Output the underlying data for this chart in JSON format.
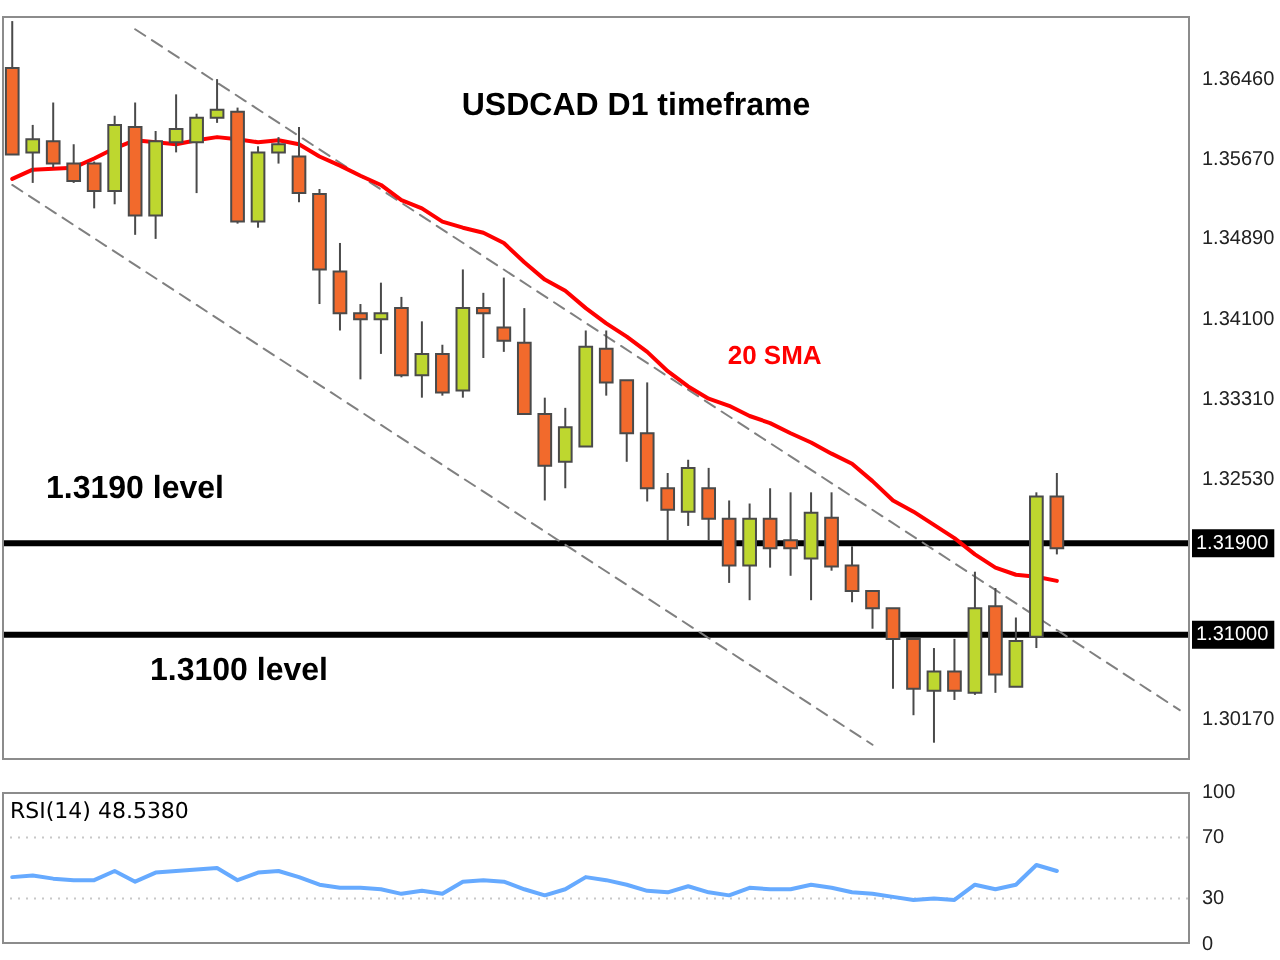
{
  "chart_data": [
    {
      "type": "candlestick",
      "title": "USDCAD D1 timeframe",
      "categories": [
        null,
        null,
        null,
        null,
        null,
        null,
        null,
        null,
        null,
        null,
        null,
        null,
        null,
        null,
        null,
        null,
        null,
        null,
        null,
        null,
        null,
        null,
        null,
        null,
        null,
        null,
        null,
        null,
        null,
        null,
        null,
        null,
        null,
        null,
        null,
        null,
        null,
        null,
        null,
        null,
        null,
        null,
        null,
        null,
        null,
        null,
        null,
        null,
        null,
        null,
        null,
        null,
        null,
        null,
        null,
        null,
        null,
        null
      ],
      "ohlc": [
        [
          1.3657,
          1.3703,
          1.3572,
          1.3572
        ],
        [
          1.3574,
          1.3601,
          1.3544,
          1.3587
        ],
        [
          1.3585,
          1.3623,
          1.3559,
          1.3563
        ],
        [
          1.3563,
          1.3582,
          1.3544,
          1.3546
        ],
        [
          1.3563,
          1.3565,
          1.3519,
          1.3536
        ],
        [
          1.3536,
          1.361,
          1.3523,
          1.3601
        ],
        [
          1.3599,
          1.3623,
          1.3493,
          1.3512
        ],
        [
          1.3512,
          1.3595,
          1.3489,
          1.3585
        ],
        [
          1.3584,
          1.3631,
          1.3574,
          1.3597
        ],
        [
          1.3584,
          1.3612,
          1.3534,
          1.3608
        ],
        [
          1.3608,
          1.3646,
          1.3603,
          1.3616
        ],
        [
          1.3614,
          1.3618,
          1.3504,
          1.3506
        ],
        [
          1.3506,
          1.358,
          1.35,
          1.3574
        ],
        [
          1.3574,
          1.3589,
          1.3563,
          1.3582
        ],
        [
          1.357,
          1.3599,
          1.3525,
          1.3534
        ],
        [
          1.3533,
          1.3538,
          1.3425,
          1.3459
        ],
        [
          1.3457,
          1.3485,
          1.3399,
          1.3416
        ],
        [
          1.3416,
          1.3425,
          1.3351,
          1.341
        ],
        [
          1.341,
          1.3446,
          1.3376,
          1.3416
        ],
        [
          1.3421,
          1.3432,
          1.3353,
          1.3355
        ],
        [
          1.3355,
          1.3408,
          1.3333,
          1.3376
        ],
        [
          1.3376,
          1.3385,
          1.3335,
          1.3338
        ],
        [
          1.334,
          1.3459,
          1.3333,
          1.3421
        ],
        [
          1.3421,
          1.3436,
          1.3372,
          1.3416
        ],
        [
          1.3402,
          1.3451,
          1.3378,
          1.3389
        ],
        [
          1.3387,
          1.3421,
          1.3317,
          1.3317
        ],
        [
          1.3317,
          1.3333,
          1.3232,
          1.3266
        ],
        [
          1.327,
          1.3323,
          1.3244,
          1.3304
        ],
        [
          1.3285,
          1.3399,
          1.3285,
          1.3383
        ],
        [
          1.3381,
          1.3399,
          1.3335,
          1.3348
        ],
        [
          1.335,
          1.335,
          1.327,
          1.3298
        ],
        [
          1.3298,
          1.3348,
          1.3231,
          1.3244
        ],
        [
          1.3244,
          1.3259,
          1.3193,
          1.3223
        ],
        [
          1.3221,
          1.3272,
          1.3207,
          1.3264
        ],
        [
          1.3244,
          1.3264,
          1.3193,
          1.3214
        ],
        [
          1.3214,
          1.3232,
          1.3151,
          1.3168
        ],
        [
          1.3168,
          1.3229,
          1.3134,
          1.3214
        ],
        [
          1.3214,
          1.3244,
          1.3166,
          1.3185
        ],
        [
          1.3193,
          1.324,
          1.3158,
          1.3185
        ],
        [
          1.3175,
          1.324,
          1.3134,
          1.322
        ],
        [
          1.3215,
          1.324,
          1.3163,
          1.3167
        ],
        [
          1.3168,
          1.3187,
          1.3132,
          1.3143
        ],
        [
          1.3143,
          1.3144,
          1.3106,
          1.3126
        ],
        [
          1.3126,
          1.3126,
          1.3047,
          1.3096
        ],
        [
          1.3096,
          1.3096,
          1.3021,
          1.3047
        ],
        [
          1.3045,
          1.3087,
          1.2994,
          1.3064
        ],
        [
          1.3064,
          1.3096,
          1.3036,
          1.3045
        ],
        [
          1.3043,
          1.3162,
          1.3041,
          1.3126
        ],
        [
          1.3128,
          1.3146,
          1.3043,
          1.3061
        ],
        [
          1.3049,
          1.3117,
          1.3049,
          1.3094
        ],
        [
          1.3098,
          1.324,
          1.3087,
          1.3236
        ],
        [
          1.3236,
          1.3259,
          1.3179,
          1.3185
        ],
        null,
        null,
        null,
        null,
        null,
        null
      ],
      "colors": [
        "#f26a2c",
        "#bed72f",
        "#f26a2c",
        "#f26a2c",
        "#f26a2c",
        "#bed72f",
        "#f26a2c",
        "#bed72f",
        "#bed72f",
        "#bed72f",
        "#bed72f",
        "#f26a2c",
        "#bed72f",
        "#bed72f",
        "#f26a2c",
        "#f26a2c",
        "#f26a2c",
        "#f26a2c",
        "#bed72f",
        "#f26a2c",
        "#bed72f",
        "#f26a2c",
        "#bed72f",
        "#f26a2c",
        "#f26a2c",
        "#f26a2c",
        "#f26a2c",
        "#bed72f",
        "#bed72f",
        "#f26a2c",
        "#f26a2c",
        "#f26a2c",
        "#f26a2c",
        "#bed72f",
        "#f26a2c",
        "#f26a2c",
        "#bed72f",
        "#f26a2c",
        "#f26a2c",
        "#bed72f",
        "#f26a2c",
        "#f26a2c",
        "#f26a2c",
        "#f26a2c",
        "#f26a2c",
        "#bed72f",
        "#f26a2c",
        "#bed72f",
        "#f26a2c",
        "#bed72f",
        "#bed72f",
        "#f26a2c",
        null,
        null,
        null,
        null,
        null,
        null
      ],
      "series": [
        {
          "name": "20 SMA",
          "type": "line",
          "color": "#ff0000",
          "line_style": "solid",
          "values": [
            1.3548,
            1.3557,
            1.3558,
            1.3559,
            1.3568,
            1.3578,
            1.3586,
            1.3584,
            1.3582,
            1.3586,
            1.3589,
            1.3587,
            1.3584,
            1.3586,
            1.3582,
            1.357,
            1.3561,
            1.3551,
            1.3542,
            1.3527,
            1.3519,
            1.3506,
            1.35,
            1.3495,
            1.3485,
            1.3466,
            1.3449,
            1.3438,
            1.3421,
            1.3406,
            1.3393,
            1.3378,
            1.3359,
            1.3344,
            1.3332,
            1.3325,
            1.3315,
            1.3308,
            1.3298,
            1.3289,
            1.3278,
            1.3268,
            1.3251,
            1.3232,
            1.3221,
            1.3208,
            1.3195,
            1.3179,
            1.3166,
            1.3159,
            1.3157,
            1.3153,
            null,
            null,
            null,
            null,
            null,
            null
          ]
        },
        {
          "type": "line",
          "color": "#808080",
          "line_style": "dashed",
          "values": [
            null,
            null,
            null,
            null,
            null,
            null,
            1.3695,
            null,
            null,
            null,
            null,
            null,
            null,
            null,
            null,
            null,
            null,
            null,
            null,
            null,
            null,
            null,
            null,
            null,
            null,
            null,
            null,
            null,
            null,
            null,
            null,
            null,
            null,
            null,
            null,
            null,
            null,
            null,
            null,
            null,
            null,
            null,
            null,
            null,
            null,
            null,
            null,
            null,
            null,
            null,
            null,
            null,
            null,
            null,
            null,
            null,
            null,
            1.3026
          ]
        },
        {
          "type": "line",
          "color": "#808080",
          "line_style": "dashed",
          "values": [
            1.3542,
            null,
            null,
            null,
            null,
            null,
            null,
            null,
            null,
            null,
            null,
            null,
            null,
            null,
            null,
            null,
            null,
            null,
            null,
            null,
            null,
            null,
            null,
            null,
            null,
            null,
            null,
            null,
            null,
            null,
            null,
            null,
            null,
            null,
            null,
            null,
            null,
            null,
            null,
            null,
            null,
            null,
            1.2992,
            null,
            null,
            null,
            null,
            null,
            null,
            null,
            null,
            null,
            null,
            null,
            null,
            null,
            null,
            null
          ]
        }
      ],
      "ylim": [
        1.2977,
        1.3708
      ],
      "yticks": [
        {
          "value": 1.3017,
          "label": "1.30170"
        },
        {
          "value": 1.3253,
          "label": "1.32530"
        },
        {
          "value": 1.3331,
          "label": "1.33310"
        },
        {
          "value": 1.341,
          "label": "1.34100"
        },
        {
          "value": 1.3489,
          "label": "1.34890"
        },
        {
          "value": 1.3567,
          "label": "1.35670"
        },
        {
          "value": 1.3646,
          "label": "1.36460"
        }
      ],
      "ref_lines": [
        {
          "axis": "y",
          "value": 1.319,
          "label": "1.31900",
          "color": "#000000"
        },
        {
          "axis": "y",
          "value": 1.31,
          "label": "1.31000",
          "color": "#000000"
        }
      ],
      "annotations": [
        "1.3190 level",
        "1.3100 level"
      ],
      "tick_labels": "y",
      "marker": "none"
    },
    {
      "type": "line",
      "title": "RSI(14) 48.5380",
      "categories": [
        null,
        null,
        null,
        null,
        null,
        null,
        null,
        null,
        null,
        null,
        null,
        null,
        null,
        null,
        null,
        null,
        null,
        null,
        null,
        null,
        null,
        null,
        null,
        null,
        null,
        null,
        null,
        null,
        null,
        null,
        null,
        null,
        null,
        null,
        null,
        null,
        null,
        null,
        null,
        null,
        null,
        null,
        null,
        null,
        null,
        null,
        null,
        null,
        null,
        null,
        null,
        null,
        null,
        null,
        null,
        null,
        null,
        null
      ],
      "series": [
        {
          "color": "#66aaff",
          "values": [
            44,
            45,
            43,
            42,
            42,
            48,
            41,
            47,
            48,
            49,
            50,
            42,
            47,
            48,
            44,
            39,
            37,
            37,
            36,
            33,
            35,
            33,
            41,
            42,
            41,
            36,
            32,
            36,
            44,
            42,
            39,
            35,
            34,
            38,
            34,
            32,
            37,
            36,
            36,
            39,
            37,
            34,
            33,
            31,
            29,
            30,
            29,
            39,
            36,
            39,
            52,
            48,
            null,
            null,
            null,
            null,
            null,
            null
          ]
        }
      ],
      "ylim": [
        0,
        100
      ],
      "yticks": [
        0,
        30,
        70,
        100
      ],
      "ref_lines": [
        {
          "axis": "y",
          "value": 70,
          "color": "#c8c8c8",
          "line_style": "dotted"
        },
        {
          "axis": "y",
          "value": 30,
          "color": "#c8c8c8",
          "line_style": "dotted"
        }
      ],
      "tick_labels": "y",
      "marker": "none"
    }
  ]
}
